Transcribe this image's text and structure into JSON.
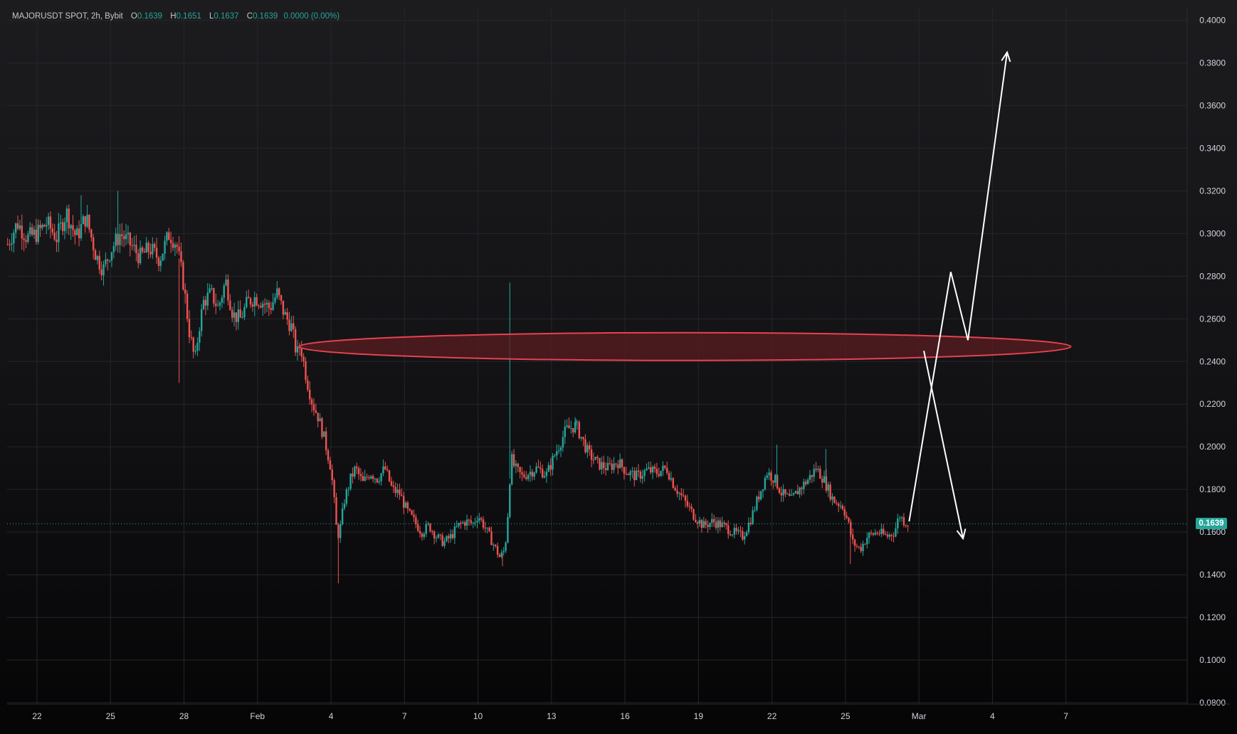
{
  "header": {
    "symbol": "MAJORUSDT SPOT, 2h, Bybit",
    "o_label": "O",
    "o_value": "0.1639",
    "h_label": "H",
    "h_value": "0.1651",
    "l_label": "L",
    "l_value": "0.1637",
    "c_label": "C",
    "c_value": "0.1639",
    "change": "0.0000 (0.00%)"
  },
  "last_price": "0.1639",
  "colors": {
    "up": "#26a69a",
    "down": "#ef5350",
    "zone_stroke": "#e8424f",
    "zone_fill": "#5a1c22",
    "projection": "#ffffff",
    "grid": "#26262b",
    "axis_text": "#d1d4dc"
  },
  "chart_data": {
    "type": "candlestick",
    "ylim": [
      0.07,
      0.4
    ],
    "y_ticks": [
      "0.4000",
      "0.3800",
      "0.3600",
      "0.3400",
      "0.3200",
      "0.3000",
      "0.2800",
      "0.2600",
      "0.2400",
      "0.2200",
      "0.2000",
      "0.1800",
      "0.1600",
      "0.1400",
      "0.1200",
      "0.1000",
      "0.0800"
    ],
    "x_ticks": [
      "22",
      "25",
      "28",
      "Feb",
      "4",
      "7",
      "10",
      "13",
      "16",
      "19",
      "22",
      "25",
      "Mar",
      "4",
      "7"
    ],
    "x_tick_days": [
      0,
      3,
      6,
      9,
      12,
      15,
      18,
      21,
      24,
      27,
      30,
      33,
      36,
      39,
      42
    ],
    "price_path": [
      [
        -1.2,
        0.295
      ],
      [
        -0.8,
        0.305
      ],
      [
        -0.4,
        0.298
      ],
      [
        0,
        0.3
      ],
      [
        0.4,
        0.305
      ],
      [
        0.8,
        0.298
      ],
      [
        1.2,
        0.31
      ],
      [
        1.6,
        0.298
      ],
      [
        2,
        0.308
      ],
      [
        2.4,
        0.29
      ],
      [
        2.7,
        0.283
      ],
      [
        3,
        0.292
      ],
      [
        3.4,
        0.3
      ],
      [
        3.8,
        0.295
      ],
      [
        4.2,
        0.289
      ],
      [
        4.6,
        0.293
      ],
      [
        5,
        0.288
      ],
      [
        5.4,
        0.3
      ],
      [
        5.7,
        0.295
      ],
      [
        6,
        0.275
      ],
      [
        6.2,
        0.255
      ],
      [
        6.45,
        0.24
      ],
      [
        6.6,
        0.255
      ],
      [
        6.8,
        0.268
      ],
      [
        7.1,
        0.272
      ],
      [
        7.4,
        0.265
      ],
      [
        7.7,
        0.278
      ],
      [
        8,
        0.262
      ],
      [
        8.3,
        0.26
      ],
      [
        8.6,
        0.268
      ],
      [
        8.9,
        0.27
      ],
      [
        9.2,
        0.268
      ],
      [
        9.5,
        0.265
      ],
      [
        9.8,
        0.272
      ],
      [
        10.1,
        0.262
      ],
      [
        10.4,
        0.256
      ],
      [
        10.6,
        0.243
      ],
      [
        10.75,
        0.248
      ],
      [
        11,
        0.232
      ],
      [
        11.25,
        0.22
      ],
      [
        11.45,
        0.215
      ],
      [
        11.7,
        0.205
      ],
      [
        12,
        0.19
      ],
      [
        12.15,
        0.172
      ],
      [
        12.25,
        0.158
      ],
      [
        12.35,
        0.16
      ],
      [
        12.55,
        0.175
      ],
      [
        12.8,
        0.185
      ],
      [
        13,
        0.19
      ],
      [
        13.3,
        0.183
      ],
      [
        13.6,
        0.188
      ],
      [
        13.9,
        0.185
      ],
      [
        14.2,
        0.19
      ],
      [
        14.5,
        0.18
      ],
      [
        14.8,
        0.178
      ],
      [
        15.1,
        0.17
      ],
      [
        15.4,
        0.165
      ],
      [
        15.7,
        0.16
      ],
      [
        16,
        0.163
      ],
      [
        16.3,
        0.158
      ],
      [
        16.6,
        0.155
      ],
      [
        16.9,
        0.158
      ],
      [
        17.2,
        0.163
      ],
      [
        17.5,
        0.165
      ],
      [
        17.8,
        0.164
      ],
      [
        18,
        0.168
      ],
      [
        18.3,
        0.162
      ],
      [
        18.6,
        0.155
      ],
      [
        18.9,
        0.148
      ],
      [
        19.1,
        0.152
      ],
      [
        19.2,
        0.165
      ],
      [
        19.35,
        0.195
      ],
      [
        19.5,
        0.19
      ],
      [
        19.8,
        0.186
      ],
      [
        20.1,
        0.188
      ],
      [
        20.4,
        0.19
      ],
      [
        20.8,
        0.187
      ],
      [
        21.2,
        0.198
      ],
      [
        21.6,
        0.208
      ],
      [
        22,
        0.21
      ],
      [
        22.2,
        0.205
      ],
      [
        22.5,
        0.197
      ],
      [
        22.9,
        0.192
      ],
      [
        23.3,
        0.19
      ],
      [
        23.7,
        0.193
      ],
      [
        24.1,
        0.188
      ],
      [
        24.5,
        0.186
      ],
      [
        24.9,
        0.189
      ],
      [
        25.3,
        0.188
      ],
      [
        25.7,
        0.19
      ],
      [
        26,
        0.182
      ],
      [
        26.4,
        0.175
      ],
      [
        26.8,
        0.168
      ],
      [
        27.2,
        0.163
      ],
      [
        27.6,
        0.165
      ],
      [
        28,
        0.163
      ],
      [
        28.4,
        0.16
      ],
      [
        28.8,
        0.158
      ],
      [
        29.1,
        0.165
      ],
      [
        29.4,
        0.175
      ],
      [
        29.8,
        0.188
      ],
      [
        30.1,
        0.185
      ],
      [
        30.4,
        0.178
      ],
      [
        30.8,
        0.175
      ],
      [
        31.1,
        0.18
      ],
      [
        31.5,
        0.185
      ],
      [
        31.8,
        0.19
      ],
      [
        32.1,
        0.185
      ],
      [
        32.5,
        0.175
      ],
      [
        32.9,
        0.172
      ],
      [
        33.1,
        0.165
      ],
      [
        33.3,
        0.155
      ],
      [
        33.6,
        0.152
      ],
      [
        33.9,
        0.158
      ],
      [
        34.3,
        0.16
      ],
      [
        34.7,
        0.158
      ],
      [
        35,
        0.16
      ],
      [
        35.2,
        0.168
      ],
      [
        35.4,
        0.165
      ],
      [
        35.6,
        0.164
      ]
    ],
    "wick_extremes": [
      {
        "day": 1.8,
        "high": 0.318
      },
      {
        "day": 3.3,
        "high": 0.32
      },
      {
        "day": 5.8,
        "low": 0.23
      },
      {
        "day": 12.3,
        "low": 0.136
      },
      {
        "day": 19.3,
        "high": 0.277
      },
      {
        "day": 19.0,
        "low": 0.144
      },
      {
        "day": 22.0,
        "high": 0.213
      },
      {
        "day": 30.2,
        "high": 0.201
      },
      {
        "day": 32.2,
        "high": 0.199
      },
      {
        "day": 33.2,
        "low": 0.145
      }
    ],
    "resistance_zone": {
      "from_day": 10.7,
      "to_day": 42.2,
      "low": 0.2405,
      "high": 0.2535
    },
    "projection_path": [
      [
        35.6,
        0.165
      ],
      [
        37.3,
        0.282
      ],
      [
        38.0,
        0.25
      ],
      [
        39.6,
        0.385
      ]
    ],
    "alt_projection_path": [
      [
        36.2,
        0.245
      ],
      [
        37.8,
        0.157
      ]
    ]
  }
}
